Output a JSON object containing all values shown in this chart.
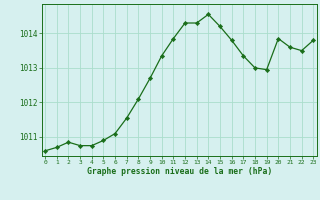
{
  "x": [
    0,
    1,
    2,
    3,
    4,
    5,
    6,
    7,
    8,
    9,
    10,
    11,
    12,
    13,
    14,
    15,
    16,
    17,
    18,
    19,
    20,
    21,
    22,
    23
  ],
  "y": [
    1010.6,
    1010.7,
    1010.85,
    1010.75,
    1010.75,
    1010.9,
    1011.1,
    1011.55,
    1012.1,
    1012.7,
    1013.35,
    1013.85,
    1014.3,
    1014.3,
    1014.55,
    1014.2,
    1013.8,
    1013.35,
    1013.0,
    1012.95,
    1013.85,
    1013.6,
    1013.5,
    1013.8
  ],
  "line_color": "#1a6e1a",
  "marker": "D",
  "marker_size": 2.2,
  "bg_color": "#d6f0ef",
  "grid_color": "#aaddcc",
  "xlabel": "Graphe pression niveau de la mer (hPa)",
  "xlabel_color": "#1a6e1a",
  "tick_color": "#1a6e1a",
  "ylim": [
    1010.45,
    1014.85
  ],
  "yticks": [
    1011,
    1012,
    1013,
    1014
  ],
  "xticks": [
    0,
    1,
    2,
    3,
    4,
    5,
    6,
    7,
    8,
    9,
    10,
    11,
    12,
    13,
    14,
    15,
    16,
    17,
    18,
    19,
    20,
    21,
    22,
    23
  ],
  "xlim": [
    -0.3,
    23.3
  ]
}
